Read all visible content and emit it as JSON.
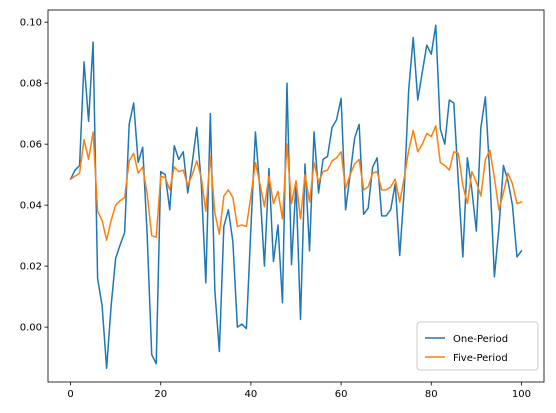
{
  "chart_data": {
    "type": "line",
    "title": "",
    "xlabel": "",
    "ylabel": "",
    "xlim": [
      -5,
      105
    ],
    "ylim": [
      -0.018,
      0.104
    ],
    "xticks": [
      0,
      20,
      40,
      60,
      80,
      100
    ],
    "yticks": [
      0.0,
      0.02,
      0.04,
      0.06,
      0.08,
      0.1
    ],
    "xtick_labels": [
      "0",
      "20",
      "40",
      "60",
      "80",
      "100"
    ],
    "ytick_labels": [
      "0.00",
      "0.02",
      "0.04",
      "0.06",
      "0.08",
      "0.10"
    ],
    "grid": false,
    "legend_position": "lower-right",
    "x_start": 0,
    "x_step": 1,
    "series": [
      {
        "name": "One-Period",
        "color": "#1f77b4",
        "values": [
          0.0485,
          0.0515,
          0.053,
          0.087,
          0.0675,
          0.0935,
          0.016,
          0.007,
          -0.0135,
          0.007,
          0.0225,
          0.027,
          0.031,
          0.0665,
          0.0735,
          0.054,
          0.059,
          0.03,
          -0.009,
          -0.012,
          0.051,
          0.05,
          0.0385,
          0.0595,
          0.055,
          0.0575,
          0.044,
          0.054,
          0.0655,
          0.047,
          0.0145,
          0.07,
          0.012,
          -0.008,
          0.033,
          0.0385,
          0.028,
          0.0,
          0.001,
          -0.0005,
          0.0325,
          0.064,
          0.045,
          0.02,
          0.052,
          0.0215,
          0.0335,
          0.008,
          0.08,
          0.0205,
          0.047,
          0.0025,
          0.0535,
          0.025,
          0.064,
          0.044,
          0.055,
          0.056,
          0.0655,
          0.068,
          0.075,
          0.0385,
          0.05,
          0.062,
          0.0665,
          0.037,
          0.039,
          0.0525,
          0.0555,
          0.0365,
          0.0365,
          0.0385,
          0.047,
          0.0235,
          0.045,
          0.078,
          0.095,
          0.0745,
          0.0835,
          0.0925,
          0.0895,
          0.099,
          0.065,
          0.06,
          0.0745,
          0.0735,
          0.0475,
          0.023,
          0.0555,
          0.045,
          0.0315,
          0.0655,
          0.0755,
          0.0495,
          0.0165,
          0.0325,
          0.053,
          0.048,
          0.04,
          0.023,
          0.025
        ]
      },
      {
        "name": "Five-Period",
        "color": "#ff7f0e",
        "values": [
          0.0485,
          0.0495,
          0.0505,
          0.0615,
          0.055,
          0.064,
          0.038,
          0.035,
          0.0285,
          0.035,
          0.04,
          0.0415,
          0.0425,
          0.0545,
          0.057,
          0.0505,
          0.0525,
          0.0435,
          0.03,
          0.0295,
          0.0495,
          0.049,
          0.045,
          0.0525,
          0.051,
          0.0515,
          0.0465,
          0.05,
          0.0545,
          0.049,
          0.038,
          0.056,
          0.0375,
          0.0305,
          0.043,
          0.045,
          0.0425,
          0.033,
          0.0335,
          0.033,
          0.043,
          0.054,
          0.047,
          0.0395,
          0.0495,
          0.0405,
          0.0445,
          0.0355,
          0.06,
          0.0405,
          0.048,
          0.0355,
          0.05,
          0.041,
          0.054,
          0.0475,
          0.051,
          0.0515,
          0.0545,
          0.0555,
          0.0575,
          0.0455,
          0.05,
          0.0535,
          0.055,
          0.045,
          0.046,
          0.0505,
          0.051,
          0.045,
          0.045,
          0.046,
          0.0485,
          0.041,
          0.049,
          0.058,
          0.0645,
          0.0575,
          0.06,
          0.0635,
          0.0625,
          0.066,
          0.054,
          0.053,
          0.0515,
          0.0575,
          0.057,
          0.0465,
          0.0405,
          0.051,
          0.0475,
          0.043,
          0.055,
          0.058,
          0.049,
          0.0385,
          0.044,
          0.0505,
          0.047,
          0.0405,
          0.041
        ]
      }
    ]
  }
}
